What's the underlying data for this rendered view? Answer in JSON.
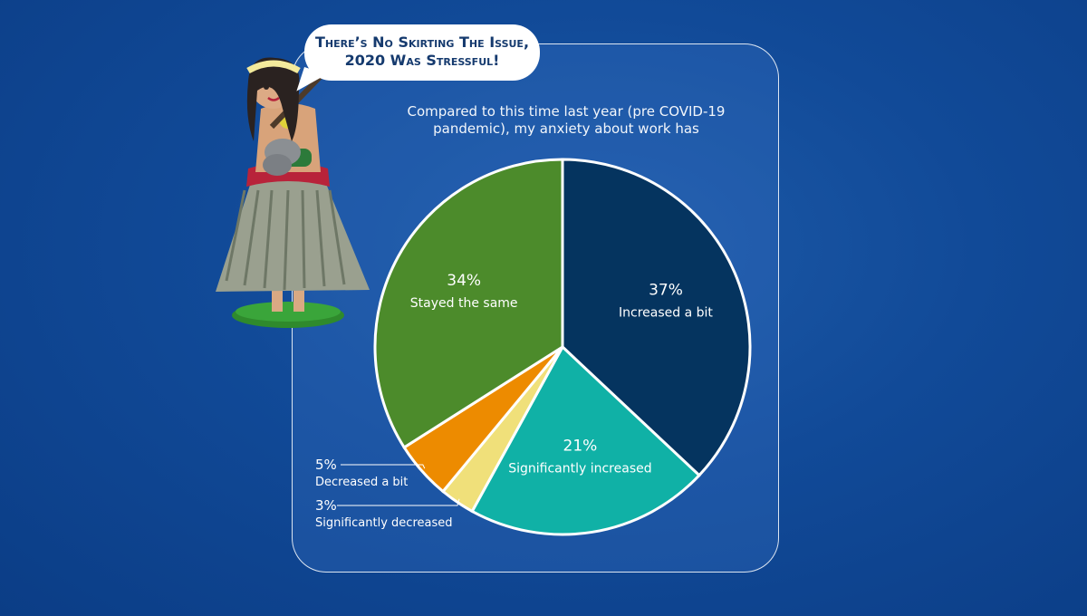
{
  "bubble": {
    "line1": "There’s No Skirting The Issue,",
    "line2": "2020 Was Stressful!"
  },
  "colors": {
    "increased_a_bit": "#05345f",
    "significantly_increased": "#10b1a6",
    "significantly_decreased": "#f0e07a",
    "decreased_a_bit": "#ed8b00",
    "stayed_the_same": "#4c8b2b"
  },
  "chart_data": {
    "type": "pie",
    "title": "Compared to this time last year (pre COVID-19 pandemic), my anxiety about work has",
    "slices": [
      {
        "label": "Increased a bit",
        "value": 37,
        "pct_label": "37%",
        "color": "#05345f"
      },
      {
        "label": "Significantly increased",
        "value": 21,
        "pct_label": "21%",
        "color": "#10b1a6"
      },
      {
        "label": "Significantly decreased",
        "value": 3,
        "pct_label": "3%",
        "color": "#f0e07a"
      },
      {
        "label": "Decreased a bit",
        "value": 5,
        "pct_label": "5%",
        "color": "#ed8b00"
      },
      {
        "label": "Stayed the same",
        "value": 34,
        "pct_label": "34%",
        "color": "#4c8b2b"
      }
    ]
  }
}
